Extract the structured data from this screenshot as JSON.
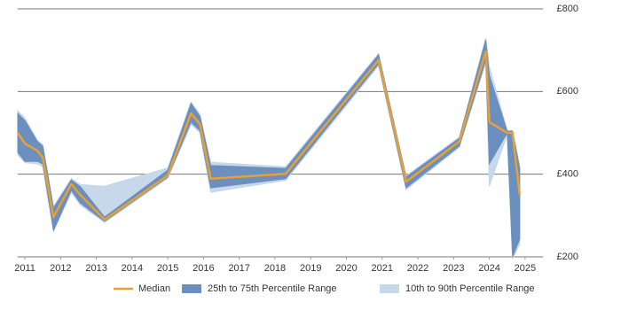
{
  "chart_data": {
    "type": "line-band",
    "x": [
      2010.8,
      2011.0,
      2011.35,
      2011.5,
      2011.8,
      2012.3,
      2012.55,
      2013.23,
      2015.0,
      2015.65,
      2015.9,
      2016.2,
      2018.3,
      2020.9,
      2021.67,
      2023.16,
      2023.9,
      2024.0,
      2024.5,
      2024.65,
      2024.85
    ],
    "median": {
      "name": "Median",
      "color": "#e8a030",
      "values": [
        500,
        474,
        457,
        440,
        296,
        376,
        350,
        290,
        397,
        547,
        521,
        389,
        401,
        676,
        382,
        479,
        697,
        526,
        500,
        500,
        350
      ]
    },
    "bands": [
      {
        "name": "10th to 90th Percentile Range",
        "color": "#c8d8eb",
        "lower": [
          446,
          428,
          425,
          418,
          262,
          355,
          325,
          283,
          390,
          520,
          500,
          356,
          385,
          662,
          362,
          465,
          670,
          371,
          495,
          195,
          230
        ],
        "upper": [
          554,
          536,
          482,
          472,
          322,
          390,
          375,
          371,
          415,
          575,
          545,
          429,
          418,
          692,
          396,
          490,
          730,
          661,
          506,
          506,
          420
        ]
      },
      {
        "name": "25th to 75th Percentile Range",
        "color": "#6b8fbf",
        "lower": [
          453,
          431,
          431,
          425,
          264,
          361,
          330,
          286,
          393,
          526,
          505,
          367,
          389,
          667,
          367,
          468,
          676,
          425,
          500,
          200,
          243
        ],
        "upper": [
          547,
          530,
          479,
          468,
          318,
          386,
          370,
          296,
          410,
          571,
          540,
          421,
          414,
          689,
          393,
          487,
          725,
          639,
          504,
          504,
          414
        ]
      }
    ],
    "xlim": [
      2010.8,
      2025.5
    ],
    "xticks": [
      2011,
      2012,
      2013,
      2014,
      2015,
      2016,
      2017,
      2018,
      2019,
      2020,
      2021,
      2022,
      2023,
      2024,
      2025
    ],
    "ylim": [
      200,
      800
    ],
    "yticks": [
      {
        "value": 200,
        "label": "£200"
      },
      {
        "value": 400,
        "label": "£400"
      },
      {
        "value": 600,
        "label": "£600"
      },
      {
        "value": 800,
        "label": "£800"
      }
    ],
    "grid": true
  }
}
